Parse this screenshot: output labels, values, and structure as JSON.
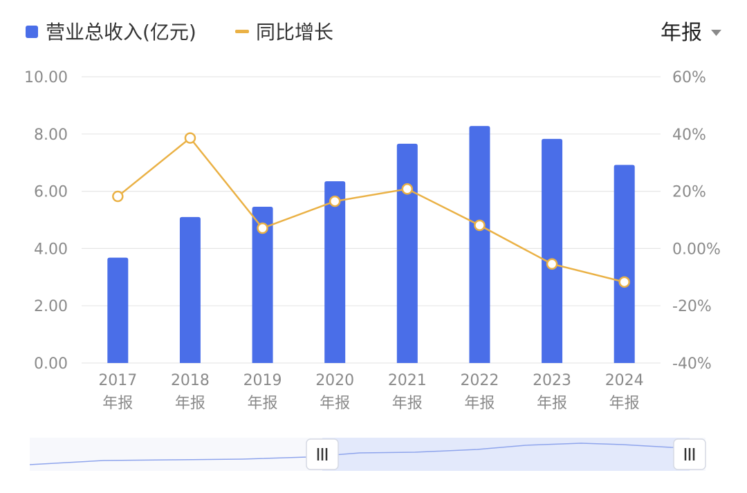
{
  "legend": {
    "revenue_label": "营业总收入(亿元)",
    "growth_label": "同比增长"
  },
  "period_selector": {
    "label": "年报"
  },
  "chart_data": {
    "type": "bar",
    "categories": [
      "2017",
      "2018",
      "2019",
      "2020",
      "2021",
      "2022",
      "2023",
      "2024"
    ],
    "category_suffix": "年报",
    "series": [
      {
        "name": "营业总收入(亿元)",
        "type": "bar",
        "axis": "left",
        "values": [
          3.68,
          5.1,
          5.46,
          6.35,
          7.66,
          8.28,
          7.83,
          6.92
        ]
      },
      {
        "name": "同比增长",
        "type": "line",
        "axis": "right",
        "values": [
          18.2,
          38.6,
          7.1,
          16.5,
          20.8,
          8.1,
          -5.4,
          -11.7
        ]
      }
    ],
    "y_left": {
      "ylim": [
        0,
        10
      ],
      "ticks": [
        "0.00",
        "2.00",
        "4.00",
        "6.00",
        "8.00",
        "10.00"
      ]
    },
    "y_right": {
      "ylim": [
        -40,
        60
      ],
      "ticks": [
        "-40%",
        "-20%",
        "0.00%",
        "20%",
        "40%",
        "60%"
      ]
    },
    "grid": true,
    "legend_position": "top-left",
    "colors": {
      "bar": "#4a6ee8",
      "line": "#eab145",
      "grid": "#e6e6e6",
      "slider_fill": "#e3e9fb",
      "slider_line": "#8ea4ec"
    }
  }
}
